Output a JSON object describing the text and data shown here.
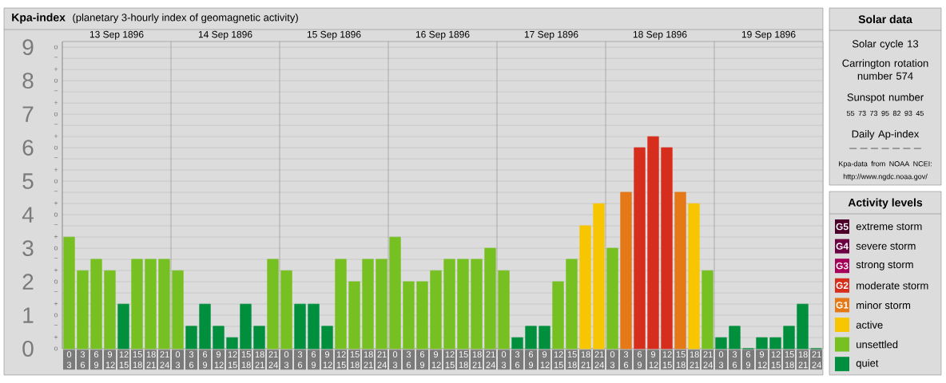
{
  "chart_data": {
    "type": "bar",
    "title": "Kpa-index",
    "subtitle": "(planetary 3-hourly index of geomagnetic activity)",
    "categories": [
      "0 3",
      "3 6",
      "6 9",
      "9 12",
      "12 15",
      "15 18",
      "18 21",
      "21 24",
      "0 3",
      "3 6",
      "6 9",
      "9 12",
      "12 15",
      "15 18",
      "18 21",
      "21 24",
      "0 3",
      "3 6",
      "6 9",
      "9 12",
      "12 15",
      "15 18",
      "18 21",
      "21 24",
      "0 3",
      "3 6",
      "6 9",
      "9 12",
      "12 15",
      "15 18",
      "18 21",
      "21 24",
      "0 3",
      "3 6",
      "6 9",
      "9 12",
      "12 15",
      "15 18",
      "18 21",
      "21 24",
      "0 3",
      "3 6",
      "6 9",
      "9 12",
      "12 15",
      "15 18",
      "18 21",
      "21 24",
      "0 3",
      "3 6",
      "6 9",
      "9 12",
      "12 15",
      "15 18",
      "18 21",
      "21 24"
    ],
    "series": [
      {
        "name": "extreme storm",
        "color": "#4d0029",
        "values": [
          null,
          null,
          null,
          null,
          null,
          null,
          null,
          null,
          null,
          null,
          null,
          null,
          null,
          null,
          null,
          null,
          null,
          null,
          null,
          null,
          null,
          null,
          null,
          null,
          null,
          null,
          null,
          null,
          null,
          null,
          null,
          null,
          null,
          null,
          null,
          null,
          null,
          null,
          null,
          null,
          null,
          null,
          null,
          null,
          null,
          null,
          null,
          null,
          null,
          null,
          null,
          null,
          null,
          null,
          null,
          null
        ]
      },
      {
        "name": "severe storm",
        "color": "#6b0043",
        "values": [
          null,
          null,
          null,
          null,
          null,
          null,
          null,
          null,
          null,
          null,
          null,
          null,
          null,
          null,
          null,
          null,
          null,
          null,
          null,
          null,
          null,
          null,
          null,
          null,
          null,
          null,
          null,
          null,
          null,
          null,
          null,
          null,
          null,
          null,
          null,
          null,
          null,
          null,
          null,
          null,
          null,
          null,
          null,
          null,
          null,
          null,
          null,
          null,
          null,
          null,
          null,
          null,
          null,
          null,
          null,
          null
        ]
      },
      {
        "name": "strong storm",
        "color": "#a6005b",
        "values": [
          null,
          null,
          null,
          null,
          null,
          null,
          null,
          null,
          null,
          null,
          null,
          null,
          null,
          null,
          null,
          null,
          null,
          null,
          null,
          null,
          null,
          null,
          null,
          null,
          null,
          null,
          null,
          null,
          null,
          null,
          null,
          null,
          null,
          null,
          null,
          null,
          null,
          null,
          null,
          null,
          null,
          null,
          null,
          null,
          null,
          null,
          null,
          null,
          null,
          null,
          null,
          null,
          null,
          null,
          null,
          null
        ]
      },
      {
        "name": "moderate storm",
        "color": "#d72d1d",
        "values": [
          null,
          null,
          null,
          null,
          null,
          null,
          null,
          null,
          null,
          null,
          null,
          null,
          null,
          null,
          null,
          null,
          null,
          null,
          null,
          null,
          null,
          null,
          null,
          null,
          null,
          null,
          null,
          null,
          null,
          null,
          null,
          null,
          null,
          null,
          null,
          null,
          null,
          null,
          null,
          null,
          null,
          null,
          6,
          6.33,
          6,
          null,
          null,
          null,
          null,
          null,
          null,
          null,
          null,
          null,
          null,
          null
        ]
      },
      {
        "name": "minor storm",
        "color": "#e57817",
        "values": [
          null,
          null,
          null,
          null,
          null,
          null,
          null,
          null,
          null,
          null,
          null,
          null,
          null,
          null,
          null,
          null,
          null,
          null,
          null,
          null,
          null,
          null,
          null,
          null,
          null,
          null,
          null,
          null,
          null,
          null,
          null,
          null,
          null,
          null,
          null,
          null,
          null,
          null,
          null,
          null,
          null,
          4.67,
          null,
          null,
          null,
          4.67,
          null,
          null,
          null,
          null,
          null,
          null,
          null,
          null,
          null,
          null
        ]
      },
      {
        "name": "active",
        "color": "#f8c600",
        "values": [
          null,
          null,
          null,
          null,
          null,
          null,
          null,
          null,
          null,
          null,
          null,
          null,
          null,
          null,
          null,
          null,
          null,
          null,
          null,
          null,
          null,
          null,
          null,
          null,
          null,
          null,
          null,
          null,
          null,
          null,
          null,
          null,
          null,
          null,
          null,
          null,
          null,
          null,
          3.67,
          4.33,
          null,
          null,
          null,
          null,
          null,
          null,
          4.33,
          null,
          null,
          null,
          null,
          null,
          null,
          null,
          null,
          null
        ]
      },
      {
        "name": "unsettled",
        "color": "#77c022",
        "values": [
          3.33,
          2.33,
          2.67,
          2.33,
          null,
          2.67,
          2.67,
          2.67,
          2.33,
          null,
          null,
          null,
          null,
          null,
          null,
          2.67,
          2.33,
          null,
          null,
          null,
          2.67,
          2,
          2.67,
          2.67,
          3.33,
          2,
          2,
          2.33,
          2.67,
          2.67,
          2.67,
          3,
          2.33,
          null,
          null,
          null,
          2,
          2.67,
          null,
          null,
          3,
          null,
          null,
          null,
          null,
          null,
          null,
          2.33,
          null,
          null,
          null,
          null,
          null,
          null,
          null,
          null
        ]
      },
      {
        "name": "quiet",
        "color": "#008f3c",
        "values": [
          null,
          null,
          null,
          null,
          1.33,
          null,
          null,
          null,
          null,
          0.67,
          1.33,
          0.67,
          0.33,
          1.33,
          0.67,
          null,
          null,
          1.33,
          1.33,
          0.67,
          null,
          null,
          null,
          null,
          null,
          null,
          null,
          null,
          null,
          null,
          null,
          null,
          null,
          0.33,
          0.67,
          0.67,
          null,
          null,
          null,
          null,
          null,
          null,
          null,
          null,
          null,
          null,
          null,
          null,
          0.33,
          0.67,
          0,
          0.33,
          0.33,
          0.67,
          1.33,
          0
        ]
      }
    ],
    "ylim": [
      0,
      9.17
    ],
    "yticks": [
      0,
      1,
      2,
      3,
      4,
      5,
      6,
      7,
      8,
      9
    ],
    "grid": "y",
    "legend": "right",
    "legend_title": "Activity levels",
    "annotations": [
      "13 Sep 1896",
      "14 Sep 1896",
      "15 Sep 1896",
      "16 Sep 1896",
      "17 Sep 1896",
      "18 Sep 1896",
      "19 Sep 1896",
      "Solar data",
      "Solar cycle 13",
      "Carrington rotation number 574",
      "Sunspot number",
      "55 73 73 95 82 93 45",
      "Daily Ap-index",
      "— — — — — — —",
      "Kpa-data from NOAA NCEI: http://www.ngdc.noaa.gov/",
      "G5",
      "G4",
      "G3",
      "G2",
      "G1",
      "o",
      "+",
      "−",
      "o",
      "+",
      "−",
      "o",
      "+",
      "−",
      "o",
      "+",
      "−",
      "o",
      "+",
      "−",
      "o",
      "+",
      "−",
      "o",
      "+",
      "−",
      "o",
      "+",
      "−",
      "o",
      "+",
      "−",
      "o"
    ]
  }
}
